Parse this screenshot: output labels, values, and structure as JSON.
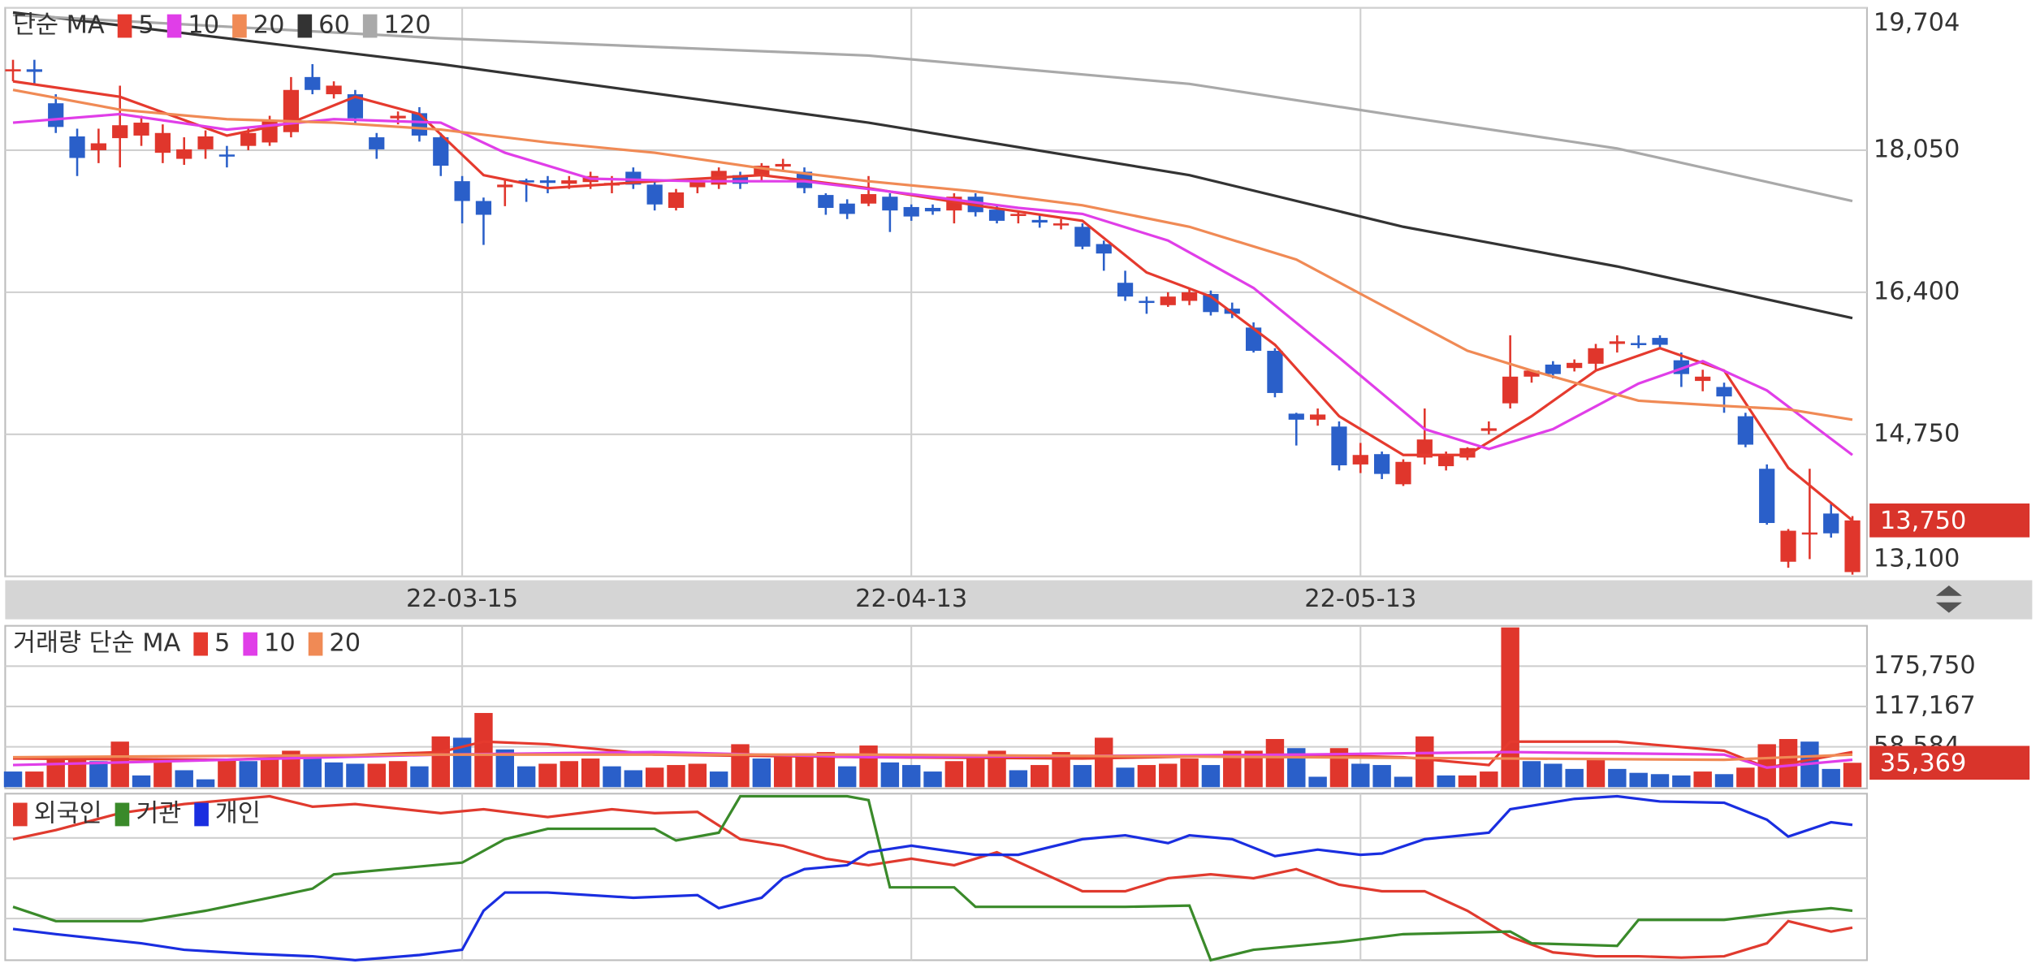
{
  "chart_data": [
    {
      "type": "candlestick",
      "legend_title": "단순 MA",
      "grid": true,
      "up_color": "#e0362c",
      "down_color": "#2a5fc9",
      "categories": [
        null,
        null,
        null,
        null,
        null,
        null,
        null,
        null,
        null,
        null,
        null,
        null,
        null,
        null,
        null,
        null,
        null,
        null,
        null,
        null,
        null,
        "22-03-15",
        null,
        null,
        null,
        null,
        null,
        null,
        null,
        null,
        null,
        null,
        null,
        null,
        null,
        null,
        null,
        null,
        null,
        null,
        null,
        null,
        "22-04-13",
        null,
        null,
        null,
        null,
        null,
        null,
        null,
        null,
        null,
        null,
        null,
        null,
        null,
        null,
        null,
        null,
        null,
        null,
        null,
        null,
        "22-05-13",
        null,
        null,
        null,
        null,
        null,
        null,
        null,
        null,
        null,
        null,
        null,
        null,
        null,
        null,
        null,
        null,
        null,
        null,
        null,
        null,
        null,
        null,
        null
      ],
      "open": [
        18970,
        18990,
        18595,
        18210,
        18050,
        18190,
        18220,
        18020,
        17950,
        18060,
        18000,
        18100,
        18140,
        18260,
        18900,
        18700,
        18700,
        18200,
        18420,
        18480,
        18200,
        17690,
        17460,
        17620,
        17700,
        17700,
        17660,
        17680,
        17640,
        17800,
        17650,
        17380,
        17620,
        17650,
        17760,
        17750,
        17860,
        17800,
        17530,
        17430,
        17430,
        17510,
        17390,
        17380,
        17350,
        17510,
        17360,
        17290,
        17240,
        17180,
        17160,
        16960,
        16510,
        16300,
        16250,
        16300,
        16380,
        16210,
        15990,
        15720,
        14990,
        14920,
        14840,
        14400,
        14520,
        14170,
        14480,
        14380,
        14480,
        14790,
        15110,
        15420,
        15560,
        15520,
        15570,
        15800,
        15810,
        15870,
        15610,
        15370,
        15300,
        14960,
        14350,
        13270,
        13590,
        13830,
        13150
      ],
      "high": [
        19100,
        19100,
        18700,
        18300,
        18300,
        18800,
        18450,
        18350,
        18200,
        18280,
        18100,
        18300,
        18450,
        18900,
        19050,
        18850,
        18750,
        18250,
        18500,
        18550,
        18250,
        17750,
        17500,
        17700,
        17720,
        17750,
        17750,
        17800,
        17750,
        17850,
        17700,
        17600,
        17700,
        17850,
        17800,
        17900,
        17950,
        17850,
        17550,
        17480,
        17750,
        17550,
        17420,
        17420,
        17550,
        17550,
        17400,
        17350,
        17300,
        17250,
        17200,
        17000,
        16650,
        16350,
        16400,
        16450,
        16420,
        16280,
        16050,
        15750,
        15000,
        15050,
        14900,
        14650,
        14550,
        14460,
        15050,
        14550,
        14600,
        14900,
        15900,
        15500,
        15600,
        15620,
        15800,
        15900,
        15900,
        15900,
        15700,
        15500,
        15350,
        15000,
        14400,
        13650,
        14350,
        13950,
        13800
      ],
      "low": [
        18850,
        18800,
        18250,
        17750,
        17900,
        17850,
        18100,
        17900,
        17880,
        17950,
        17850,
        18050,
        18100,
        18200,
        18700,
        18650,
        18350,
        17950,
        18350,
        18150,
        17750,
        17200,
        16950,
        17400,
        17450,
        17550,
        17600,
        17600,
        17550,
        17600,
        17350,
        17350,
        17550,
        17600,
        17600,
        17700,
        17800,
        17550,
        17300,
        17250,
        17400,
        17100,
        17230,
        17300,
        17200,
        17280,
        17200,
        17200,
        17150,
        17130,
        16900,
        16650,
        16300,
        16150,
        16230,
        16250,
        16130,
        16100,
        15700,
        15180,
        14620,
        14850,
        14330,
        14300,
        14230,
        14150,
        14400,
        14330,
        14450,
        14750,
        15050,
        15350,
        15400,
        15480,
        15500,
        15700,
        15750,
        15750,
        15300,
        15250,
        15000,
        14600,
        13700,
        13200,
        13300,
        13550,
        13120
      ],
      "close": [
        18990,
        18960,
        18320,
        17960,
        18130,
        18340,
        18370,
        18250,
        18060,
        18210,
        17980,
        18250,
        18400,
        18750,
        18750,
        18800,
        18420,
        18060,
        18450,
        18220,
        17870,
        17460,
        17300,
        17650,
        17680,
        17670,
        17700,
        17750,
        17670,
        17650,
        17420,
        17560,
        17680,
        17810,
        17660,
        17870,
        17890,
        17610,
        17380,
        17310,
        17540,
        17350,
        17280,
        17340,
        17510,
        17330,
        17230,
        17310,
        17210,
        17200,
        16930,
        16850,
        16350,
        16280,
        16350,
        16400,
        16170,
        16150,
        15720,
        15230,
        14920,
        14980,
        14390,
        14510,
        14290,
        14430,
        14690,
        14500,
        14590,
        14820,
        15420,
        15490,
        15450,
        15580,
        15750,
        15830,
        15790,
        15790,
        15450,
        15420,
        15190,
        14630,
        13720,
        13630,
        13610,
        13600,
        13750
      ],
      "series": [
        {
          "name": "5",
          "color": "#e53a2e",
          "x": [
            0,
            5,
            10,
            13,
            16,
            19,
            22,
            25,
            30,
            35,
            40,
            45,
            50,
            53,
            56,
            59,
            62,
            65,
            68,
            71,
            74,
            77,
            80,
            83,
            86
          ],
          "values": [
            18850,
            18670,
            18220,
            18370,
            18670,
            18470,
            17760,
            17610,
            17690,
            17760,
            17610,
            17410,
            17230,
            16630,
            16350,
            15790,
            14960,
            14510,
            14510,
            14960,
            15490,
            15750,
            15490,
            14360,
            13750
          ]
        },
        {
          "name": "10",
          "color": "#e03ee8",
          "x": [
            0,
            5,
            10,
            15,
            20,
            23,
            27,
            32,
            37,
            42,
            47,
            50,
            54,
            58,
            62,
            66,
            69,
            72,
            76,
            79,
            82,
            86
          ],
          "values": [
            18370,
            18470,
            18290,
            18410,
            18370,
            18020,
            17720,
            17690,
            17690,
            17540,
            17380,
            17310,
            17000,
            16450,
            15640,
            14810,
            14580,
            14810,
            15340,
            15600,
            15260,
            14510
          ]
        },
        {
          "name": "20",
          "color": "#f08a55",
          "x": [
            0,
            5,
            10,
            15,
            20,
            25,
            30,
            35,
            40,
            45,
            50,
            55,
            60,
            64,
            68,
            71,
            76,
            80,
            83,
            86
          ],
          "values": [
            18750,
            18520,
            18410,
            18370,
            18290,
            18140,
            18020,
            17840,
            17690,
            17570,
            17410,
            17160,
            16780,
            16250,
            15720,
            15490,
            15140,
            15080,
            15040,
            14920
          ]
        },
        {
          "name": "60",
          "color": "#333333",
          "x": [
            0,
            6,
            20,
            40,
            55,
            65,
            75,
            86
          ],
          "values": [
            19650,
            19470,
            19050,
            18370,
            17760,
            17160,
            16700,
            16100
          ]
        },
        {
          "name": "120",
          "color": "#a9a9a9",
          "x": [
            0,
            20,
            40,
            55,
            65,
            75,
            86
          ],
          "values": [
            19620,
            19350,
            19150,
            18820,
            18440,
            18070,
            17460
          ]
        }
      ],
      "current": {
        "value": 13750,
        "label": "13,750",
        "color": "#d9342b"
      },
      "ylim": [
        13100,
        19704
      ],
      "yticks": [
        {
          "value": 19704,
          "label": "19,704"
        },
        {
          "value": 18050,
          "label": "18,050"
        },
        {
          "value": 16400,
          "label": "16,400"
        },
        {
          "value": 14750,
          "label": "14,750"
        },
        {
          "value": 13100,
          "label": "13,100"
        }
      ]
    },
    {
      "type": "bar",
      "legend_title": "거래량 단순 MA",
      "grid": true,
      "up_color": "#e0362c",
      "down_color": "#2a5fc9",
      "values": [
        22680,
        22680,
        41580,
        45360,
        37800,
        66150,
        17010,
        37800,
        24570,
        11340,
        41580,
        37800,
        41580,
        52920,
        45360,
        35910,
        34020,
        34020,
        37800,
        30240,
        73710,
        71820,
        107730,
        54810,
        30240,
        34020,
        37800,
        41580,
        30240,
        24570,
        28350,
        32130,
        34020,
        22680,
        62370,
        41580,
        47250,
        49140,
        51030,
        30240,
        60480,
        35910,
        32130,
        22680,
        37800,
        47250,
        52920,
        24570,
        32130,
        51030,
        32130,
        71820,
        28350,
        32130,
        34020,
        41580,
        32130,
        52920,
        52920,
        69930,
        56700,
        15120,
        56700,
        34020,
        32130,
        15120,
        73710,
        17010,
        17010,
        22680,
        232000,
        37800,
        34020,
        26460,
        41580,
        26460,
        20790,
        18900,
        17010,
        22680,
        18900,
        28350,
        62370,
        69930,
        66150,
        26460,
        35369
      ],
      "series": [
        {
          "name": "5",
          "color": "#e53a2e",
          "x": [
            0,
            10,
            20,
            22,
            25,
            30,
            40,
            50,
            60,
            65,
            69,
            70,
            75,
            80,
            82,
            86
          ],
          "values": [
            41580,
            39690,
            51030,
            66150,
            62370,
            47250,
            43470,
            41580,
            47250,
            43470,
            32130,
            66150,
            66150,
            52920,
            28350,
            51030
          ]
        },
        {
          "name": "10",
          "color": "#e03ee8",
          "x": [
            0,
            20,
            30,
            40,
            60,
            70,
            80,
            82,
            86
          ],
          "values": [
            32130,
            47250,
            51030,
            43470,
            47250,
            51030,
            47250,
            28350,
            39690
          ]
        },
        {
          "name": "20",
          "color": "#f08a55",
          "x": [
            0,
            20,
            40,
            60,
            70,
            80,
            86
          ],
          "values": [
            43470,
            47250,
            47250,
            43470,
            41580,
            39690,
            47250
          ]
        }
      ],
      "current": {
        "value": 35369,
        "label": "35,369",
        "color": "#d9342b"
      },
      "ylim": [
        0,
        234334
      ],
      "yticks": [
        {
          "value": 175750,
          "label": "175,750"
        },
        {
          "value": 117167,
          "label": "117,167"
        },
        {
          "value": 58584,
          "label": "58,584"
        }
      ]
    },
    {
      "type": "line",
      "series": [
        {
          "name": "외국인",
          "color": "#e03a2e",
          "x": [
            0,
            2,
            5,
            8,
            10,
            12,
            14,
            16,
            20,
            22,
            25,
            28,
            30,
            32,
            34,
            36,
            38,
            40,
            42,
            44,
            46,
            48,
            50,
            52,
            54,
            56,
            58,
            60,
            62,
            64,
            66,
            68,
            70,
            72,
            74,
            76,
            78,
            80,
            82,
            83,
            85,
            86
          ],
          "values": [
            93,
            100,
            113,
            120,
            123,
            126,
            118,
            120,
            113,
            116,
            110,
            116,
            113,
            114,
            93,
            88,
            78,
            73,
            78,
            73,
            83,
            68,
            53,
            53,
            63,
            66,
            63,
            70,
            58,
            53,
            53,
            38,
            18,
            6,
            3,
            3,
            2,
            3,
            13,
            30,
            22,
            25
          ]
        },
        {
          "name": "기관",
          "color": "#3a8a2a",
          "x": [
            0,
            2,
            6,
            9,
            12,
            14,
            15,
            21,
            23,
            25,
            30,
            31,
            33,
            34,
            39,
            40,
            41,
            44,
            45,
            52,
            55,
            56,
            58,
            62,
            65,
            70,
            71,
            75,
            76,
            80,
            83,
            85,
            86
          ],
          "values": [
            41,
            30,
            30,
            38,
            48,
            55,
            66,
            75,
            93,
            101,
            101,
            92,
            98,
            126,
            126,
            123,
            56,
            56,
            41,
            41,
            42,
            0,
            8,
            14,
            20,
            22,
            13,
            11,
            31,
            31,
            37,
            40,
            38
          ]
        },
        {
          "name": "개인",
          "color": "#1a2ee0",
          "x": [
            0,
            2,
            6,
            8,
            11,
            14,
            16,
            19,
            21,
            22,
            23,
            25,
            29,
            32,
            33,
            35,
            36,
            37,
            39,
            40,
            42,
            45,
            47,
            50,
            52,
            54,
            55,
            57,
            59,
            61,
            63,
            64,
            66,
            69,
            70,
            73,
            75,
            77,
            80,
            82,
            83,
            85,
            86
          ],
          "values": [
            24,
            20,
            13,
            8,
            5,
            3,
            0,
            4,
            8,
            38,
            52,
            52,
            48,
            50,
            40,
            48,
            63,
            70,
            73,
            83,
            88,
            81,
            81,
            93,
            96,
            90,
            96,
            93,
            80,
            85,
            81,
            82,
            93,
            98,
            116,
            124,
            126,
            122,
            121,
            108,
            95,
            106,
            104
          ]
        }
      ],
      "ylim": [
        0,
        128
      ]
    }
  ]
}
